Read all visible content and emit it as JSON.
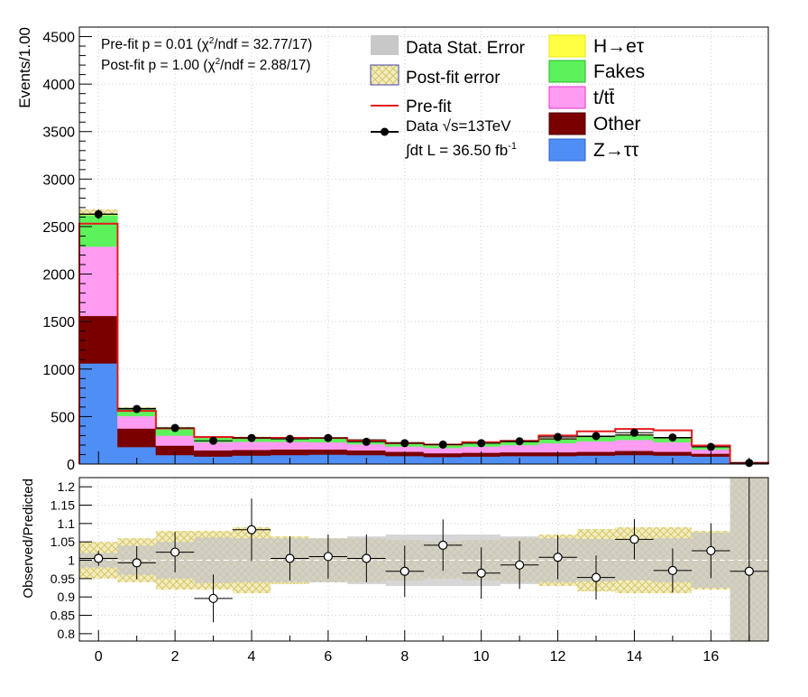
{
  "colors": {
    "ztautau": "#4f8ff5",
    "other": "#7a0000",
    "ttbar": "#ff9cf2",
    "fakes": "#5cf25c",
    "signal": "#ffff44",
    "prefit": "#e41a1c",
    "stat_error": "#c8c8c8",
    "postfit_error": "#d6c86a"
  },
  "chart_data": [
    {
      "type": "bar",
      "stacked": true,
      "bins": [
        0,
        1,
        2,
        3,
        4,
        5,
        6,
        7,
        8,
        9,
        10,
        11,
        12,
        13,
        14,
        15,
        16,
        17
      ],
      "xlim": [
        -0.5,
        17.5
      ],
      "ylim": [
        0,
        4600
      ],
      "ylabel": "Events/1.00",
      "yticks": [
        "0",
        "500",
        "1000",
        "1500",
        "2000",
        "2500",
        "3000",
        "3500",
        "4000",
        "4500"
      ],
      "ytick_values": [
        0,
        500,
        1000,
        1500,
        2000,
        2500,
        3000,
        3500,
        4000,
        4500
      ],
      "grid": true,
      "stats_lines": [
        {
          "prefix": "Pre-fit   p = 0.01 (χ",
          "suffix": "/ndf = 32.77/17)"
        },
        {
          "prefix": "Post-fit p = 1.00 (χ",
          "suffix": "/ndf = 2.88/17)"
        }
      ],
      "legend": {
        "stat_error": "Data Stat. Error",
        "postfit_error": "Post-fit error",
        "prefit": "Pre-fit",
        "data": "Data  √s=13TeV",
        "lumi_prefix": "∫dt L = 36.50 fb",
        "lumi_exp": "-1",
        "signal": "H→eτ",
        "fakes": "Fakes",
        "ttbar": "t/tt̄",
        "other": "Other",
        "ztautau": "Z→ττ"
      },
      "series": [
        {
          "key": "ztautau",
          "name": "Z→ττ",
          "values": [
            1060,
            180,
            95,
            80,
            90,
            95,
            100,
            95,
            85,
            75,
            80,
            85,
            85,
            90,
            95,
            90,
            80,
            5
          ]
        },
        {
          "key": "other",
          "name": "Other",
          "values": [
            500,
            195,
            100,
            65,
            60,
            60,
            55,
            50,
            45,
            40,
            40,
            40,
            40,
            40,
            45,
            40,
            30,
            3
          ]
        },
        {
          "key": "ttbar",
          "name": "t/tt̄",
          "values": [
            730,
            130,
            105,
            85,
            85,
            80,
            75,
            65,
            55,
            55,
            65,
            75,
            95,
            110,
            115,
            100,
            45,
            2
          ]
        },
        {
          "key": "fakes",
          "name": "Fakes",
          "values": [
            330,
            75,
            75,
            45,
            40,
            40,
            40,
            40,
            35,
            30,
            30,
            30,
            40,
            45,
            45,
            40,
            25,
            2
          ]
        },
        {
          "key": "signal",
          "name": "H→eτ",
          "values": [
            10,
            5,
            5,
            5,
            5,
            5,
            5,
            5,
            5,
            5,
            5,
            5,
            5,
            5,
            5,
            5,
            5,
            1
          ]
        }
      ],
      "prefit_total": [
        2530,
        560,
        375,
        285,
        275,
        275,
        275,
        245,
        220,
        205,
        230,
        245,
        300,
        345,
        370,
        355,
        195,
        13
      ],
      "data": [
        2630,
        580,
        380,
        245,
        275,
        265,
        275,
        235,
        220,
        205,
        220,
        240,
        285,
        295,
        330,
        280,
        180,
        12
      ]
    },
    {
      "type": "scatter",
      "ylabel": "Observed/Predicted",
      "xlim": [
        -0.5,
        17.5
      ],
      "ylim": [
        0.78,
        1.225
      ],
      "xticks": [
        "0",
        "2",
        "4",
        "6",
        "8",
        "10",
        "12",
        "14",
        "16"
      ],
      "xtick_values": [
        0,
        2,
        4,
        6,
        8,
        10,
        12,
        14,
        16
      ],
      "yticks": [
        "0.8",
        "0.85",
        "0.9",
        "0.95",
        "1",
        "1.05",
        "1.1",
        "1.15",
        "1.2"
      ],
      "ytick_values": [
        0.8,
        0.85,
        0.9,
        0.95,
        1,
        1.05,
        1.1,
        1.15,
        1.2
      ],
      "grid": true,
      "ratio": [
        1.005,
        0.993,
        1.022,
        0.896,
        1.083,
        1.005,
        1.01,
        1.005,
        0.97,
        1.041,
        0.965,
        0.987,
        1.008,
        0.953,
        1.057,
        0.972,
        1.026,
        0.97
      ],
      "ratio_err": [
        0.02,
        0.045,
        0.055,
        0.065,
        0.085,
        0.06,
        0.06,
        0.065,
        0.07,
        0.07,
        0.07,
        0.065,
        0.06,
        0.06,
        0.055,
        0.06,
        0.075,
        0.3
      ],
      "stat_err": [
        0.02,
        0.04,
        0.05,
        0.062,
        0.06,
        0.06,
        0.06,
        0.065,
        0.07,
        0.07,
        0.07,
        0.065,
        0.06,
        0.058,
        0.055,
        0.06,
        0.075,
        0.3
      ],
      "postfit_err": [
        0.05,
        0.06,
        0.08,
        0.08,
        0.09,
        0.065,
        0.06,
        0.06,
        0.055,
        0.05,
        0.055,
        0.06,
        0.07,
        0.085,
        0.09,
        0.09,
        0.08,
        0.4
      ]
    }
  ]
}
